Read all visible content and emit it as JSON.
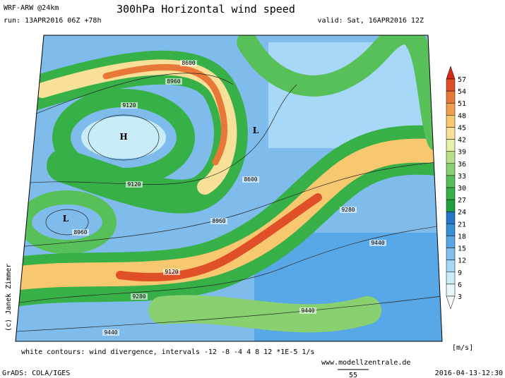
{
  "header": {
    "model": "WRF-ARW @24km",
    "title": "300hPa Horizontal wind speed",
    "run": "run: 13APR2016 06Z +78h",
    "valid": "valid: Sat, 16APR2016 12Z"
  },
  "map": {
    "pressure_labels": [
      {
        "label": "H",
        "x": 175,
        "y": 198
      },
      {
        "label": "L",
        "x": 362,
        "y": 189
      },
      {
        "label": "L",
        "x": 93,
        "y": 314
      }
    ],
    "contour_labels": [
      "8600",
      "8960",
      "9120",
      "9120",
      "8600",
      "8960",
      "8960",
      "9280",
      "9120",
      "9280",
      "9440",
      "9440",
      "9440"
    ]
  },
  "colorbar": {
    "labels": [
      "57",
      "54",
      "51",
      "48",
      "45",
      "42",
      "39",
      "36",
      "33",
      "30",
      "27",
      "24",
      "21",
      "18",
      "15",
      "12",
      "9",
      "6",
      "3"
    ],
    "colors": [
      "#d82818",
      "#e05028",
      "#e87838",
      "#f0a050",
      "#f8c870",
      "#f8e098",
      "#e8f0a8",
      "#b8e088",
      "#88d070",
      "#58c058",
      "#38b048",
      "#20a040",
      "#2878c8",
      "#3890d8",
      "#58a8e8",
      "#80c0f0",
      "#a8d8f8",
      "#c8ecf8",
      "#e8f8fc",
      "#f8fcfc"
    ],
    "unit": "[m/s]"
  },
  "footer": {
    "credit": "(c) Janek Zimmer",
    "divergence": "white contours: wind divergence, intervals -12 -8 -4 4 8 12 *1E-5 1/s",
    "website": "www.modellzentrale.de",
    "software": "GrADS: COLA/IGES",
    "reference": "55",
    "timestamp": "2016-04-13-12:30"
  }
}
